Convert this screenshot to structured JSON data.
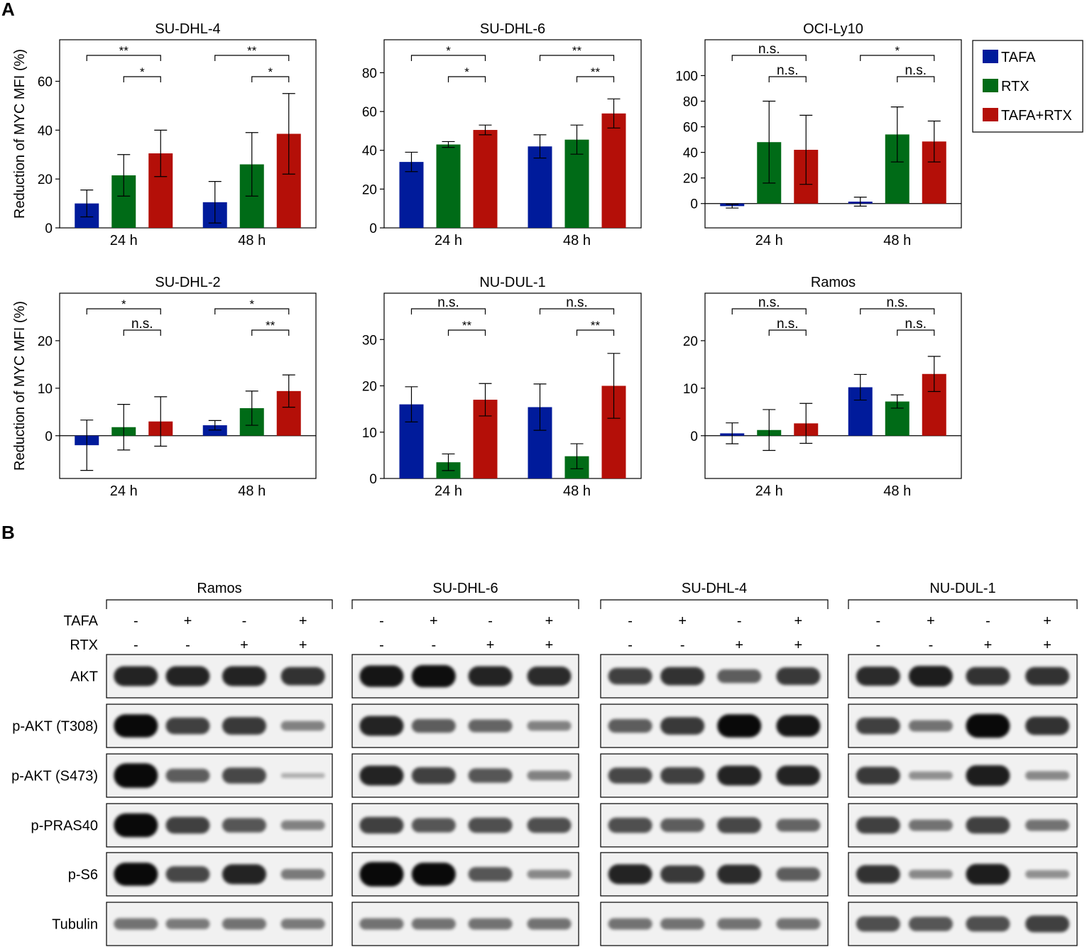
{
  "panel_letters": {
    "a": "A",
    "b": "B"
  },
  "colors": {
    "TAFA": "#001b9b",
    "RTX": "#006b17",
    "TAFA+RTX": "#b40f08"
  },
  "legend": {
    "items": [
      "TAFA",
      "RTX",
      "TAFA+RTX"
    ]
  },
  "chart_data": [
    {
      "type": "bar",
      "title": "SU-DHL-4",
      "ylabel": "Reduction of MYC MFI (%)",
      "categories": [
        "24 h",
        "48 h"
      ],
      "ylim": [
        0,
        77
      ],
      "yticks": [
        0,
        20,
        40,
        60
      ],
      "series": [
        {
          "name": "TAFA",
          "values": [
            10,
            10.5
          ],
          "errors": [
            5.5,
            8.5
          ]
        },
        {
          "name": "RTX",
          "values": [
            21.5,
            26
          ],
          "errors": [
            8.5,
            13
          ]
        },
        {
          "name": "TAFA+RTX",
          "values": [
            30.5,
            38.5
          ],
          "errors": [
            9.5,
            16.5
          ]
        }
      ],
      "significance": [
        {
          "group": 0,
          "pairs": [
            [
              "TAFA",
              "TAFA+RTX",
              "**"
            ],
            [
              "RTX",
              "TAFA+RTX",
              "*"
            ]
          ]
        },
        {
          "group": 1,
          "pairs": [
            [
              "TAFA",
              "TAFA+RTX",
              "**"
            ],
            [
              "RTX",
              "TAFA+RTX",
              "*"
            ]
          ]
        }
      ]
    },
    {
      "type": "bar",
      "title": "SU-DHL-6",
      "ylabel": "",
      "categories": [
        "24 h",
        "48 h"
      ],
      "ylim": [
        0,
        97
      ],
      "yticks": [
        0,
        20,
        40,
        60,
        80
      ],
      "series": [
        {
          "name": "TAFA",
          "values": [
            34,
            42
          ],
          "errors": [
            5,
            6
          ]
        },
        {
          "name": "RTX",
          "values": [
            43,
            45.5
          ],
          "errors": [
            1.5,
            7.5
          ]
        },
        {
          "name": "TAFA+RTX",
          "values": [
            50.5,
            59
          ],
          "errors": [
            2.5,
            7.5
          ]
        }
      ],
      "significance": [
        {
          "group": 0,
          "pairs": [
            [
              "TAFA",
              "TAFA+RTX",
              "*"
            ],
            [
              "RTX",
              "TAFA+RTX",
              "*"
            ]
          ]
        },
        {
          "group": 1,
          "pairs": [
            [
              "TAFA",
              "TAFA+RTX",
              "**"
            ],
            [
              "RTX",
              "TAFA+RTX",
              "**"
            ]
          ]
        }
      ]
    },
    {
      "type": "bar",
      "title": "OCI-Ly10",
      "ylabel": "",
      "categories": [
        "24 h",
        "48 h"
      ],
      "ylim": [
        -19,
        128
      ],
      "yticks": [
        0,
        20,
        40,
        60,
        80,
        100
      ],
      "series": [
        {
          "name": "TAFA",
          "values": [
            -2,
            1.5
          ],
          "errors": [
            1.5,
            3.5
          ]
        },
        {
          "name": "RTX",
          "values": [
            48,
            54
          ],
          "errors": [
            32,
            21.5
          ]
        },
        {
          "name": "TAFA+RTX",
          "values": [
            42,
            48.5
          ],
          "errors": [
            27,
            16
          ]
        }
      ],
      "significance": [
        {
          "group": 0,
          "pairs": [
            [
              "TAFA",
              "TAFA+RTX",
              "n.s."
            ],
            [
              "RTX",
              "TAFA+RTX",
              "n.s."
            ]
          ]
        },
        {
          "group": 1,
          "pairs": [
            [
              "TAFA",
              "TAFA+RTX",
              "*"
            ],
            [
              "RTX",
              "TAFA+RTX",
              "n.s."
            ]
          ]
        }
      ]
    },
    {
      "type": "bar",
      "title": "SU-DHL-2",
      "ylabel": "Reduction of MYC MFI (%)",
      "categories": [
        "24 h",
        "48 h"
      ],
      "ylim": [
        -9,
        30
      ],
      "yticks": [
        0,
        10,
        20
      ],
      "series": [
        {
          "name": "TAFA",
          "values": [
            -2,
            2.2
          ],
          "errors": [
            5.3,
            1
          ]
        },
        {
          "name": "RTX",
          "values": [
            1.8,
            5.8
          ],
          "errors": [
            4.8,
            3.6
          ]
        },
        {
          "name": "TAFA+RTX",
          "values": [
            3,
            9.4
          ],
          "errors": [
            5.2,
            3.4
          ]
        }
      ],
      "significance": [
        {
          "group": 0,
          "pairs": [
            [
              "TAFA",
              "TAFA+RTX",
              "*"
            ],
            [
              "RTX",
              "TAFA+RTX",
              "n.s."
            ]
          ]
        },
        {
          "group": 1,
          "pairs": [
            [
              "TAFA",
              "TAFA+RTX",
              "*"
            ],
            [
              "RTX",
              "TAFA+RTX",
              "**"
            ]
          ]
        }
      ]
    },
    {
      "type": "bar",
      "title": "NU-DUL-1",
      "ylabel": "",
      "categories": [
        "24 h",
        "48 h"
      ],
      "ylim": [
        0,
        40
      ],
      "yticks": [
        0,
        10,
        20,
        30
      ],
      "series": [
        {
          "name": "TAFA",
          "values": [
            16,
            15.4
          ],
          "errors": [
            3.8,
            5
          ]
        },
        {
          "name": "RTX",
          "values": [
            3.5,
            4.8
          ],
          "errors": [
            1.8,
            2.7
          ]
        },
        {
          "name": "TAFA+RTX",
          "values": [
            17,
            20
          ],
          "errors": [
            3.5,
            7
          ]
        }
      ],
      "significance": [
        {
          "group": 0,
          "pairs": [
            [
              "TAFA",
              "TAFA+RTX",
              "n.s."
            ],
            [
              "RTX",
              "TAFA+RTX",
              "**"
            ]
          ]
        },
        {
          "group": 1,
          "pairs": [
            [
              "TAFA",
              "TAFA+RTX",
              "n.s."
            ],
            [
              "RTX",
              "TAFA+RTX",
              "**"
            ]
          ]
        }
      ]
    },
    {
      "type": "bar",
      "title": "Ramos",
      "ylabel": "",
      "categories": [
        "24 h",
        "48 h"
      ],
      "ylim": [
        -9,
        30
      ],
      "yticks": [
        0,
        10,
        20
      ],
      "series": [
        {
          "name": "TAFA",
          "values": [
            0.5,
            10.2
          ],
          "errors": [
            2.2,
            2.7
          ]
        },
        {
          "name": "RTX",
          "values": [
            1.2,
            7.2
          ],
          "errors": [
            4.3,
            1.4
          ]
        },
        {
          "name": "TAFA+RTX",
          "values": [
            2.6,
            13
          ],
          "errors": [
            4.2,
            3.7
          ]
        }
      ],
      "significance": [
        {
          "group": 0,
          "pairs": [
            [
              "TAFA",
              "TAFA+RTX",
              "n.s."
            ],
            [
              "RTX",
              "TAFA+RTX",
              "n.s."
            ]
          ]
        },
        {
          "group": 1,
          "pairs": [
            [
              "TAFA",
              "TAFA+RTX",
              "n.s."
            ],
            [
              "RTX",
              "TAFA+RTX",
              "n.s."
            ]
          ]
        }
      ]
    }
  ],
  "western_blot": {
    "treatment_rows": [
      {
        "label": "TAFA",
        "values": [
          "-",
          "+",
          "-",
          "+"
        ]
      },
      {
        "label": "RTX",
        "values": [
          "-",
          "-",
          "+",
          "+"
        ]
      }
    ],
    "proteins": [
      "AKT",
      "p-AKT (T308)",
      "p-AKT (S473)",
      "p-PRAS40",
      "p-S6",
      "Tubulin"
    ],
    "cell_lines": [
      {
        "name": "Ramos",
        "intensities": [
          [
            1,
            1,
            1,
            0.9
          ],
          [
            1.2,
            0.8,
            0.85,
            0.35
          ],
          [
            1.3,
            0.6,
            0.75,
            0.04
          ],
          [
            1.25,
            0.8,
            0.65,
            0.35
          ],
          [
            1.2,
            0.75,
            1,
            0.4
          ],
          [
            0.45,
            0.4,
            0.45,
            0.4
          ]
        ]
      },
      {
        "name": "SU-DHL-6",
        "intensities": [
          [
            1.1,
            1.15,
            1,
            0.95
          ],
          [
            1,
            0.6,
            0.55,
            0.35
          ],
          [
            1,
            0.8,
            0.65,
            0.35
          ],
          [
            0.8,
            0.65,
            0.7,
            0.7
          ],
          [
            1.3,
            1.2,
            0.65,
            0.3
          ],
          [
            0.45,
            0.45,
            0.45,
            0.45
          ]
        ]
      },
      {
        "name": "SU-DHL-4",
        "intensities": [
          [
            0.8,
            0.9,
            0.6,
            0.85
          ],
          [
            0.6,
            0.85,
            1.2,
            1.1
          ],
          [
            0.75,
            0.8,
            1,
            1
          ],
          [
            0.7,
            0.6,
            0.75,
            0.55
          ],
          [
            1,
            0.85,
            0.95,
            0.6
          ],
          [
            0.45,
            0.45,
            0.45,
            0.45
          ]
        ]
      },
      {
        "name": "NU-DUL-1",
        "intensities": [
          [
            0.95,
            1.05,
            0.9,
            0.9
          ],
          [
            0.8,
            0.45,
            1.25,
            0.9
          ],
          [
            0.85,
            0.25,
            1.05,
            0.3
          ],
          [
            0.8,
            0.45,
            0.8,
            0.45
          ],
          [
            0.9,
            0.3,
            1.05,
            0.25
          ],
          [
            0.7,
            0.65,
            0.7,
            0.8
          ]
        ]
      }
    ]
  }
}
